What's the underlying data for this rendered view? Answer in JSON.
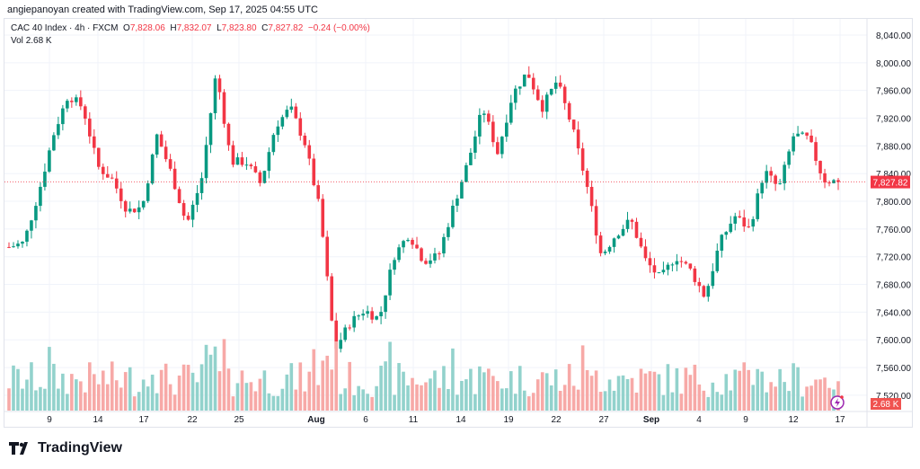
{
  "credit": "angiepanoyan created with TradingView.com, Sep 17, 2025 04:55 UTC",
  "legend": {
    "symbol": "CAC 40 Index · 4h · FXCM",
    "o_label": "O",
    "o": "7,828.06",
    "h_label": "H",
    "h": "7,832.07",
    "l_label": "L",
    "l": "7,823.80",
    "c_label": "C",
    "c": "7,827.82",
    "change": "−0.24 (−0.00%)",
    "vol_label": "Vol",
    "vol": "2.68 K"
  },
  "logo": "TradingView",
  "colors": {
    "up": "#089981",
    "down": "#f23645",
    "vol_up": "#92d2cc",
    "vol_down": "#f7a9a7"
  },
  "chart_data": {
    "type": "candlestick",
    "title": "CAC 40 Index · 4h · FXCM",
    "ylim": [
      7500,
      8060
    ],
    "y_ticks": [
      "8,040.00",
      "8,000.00",
      "7,960.00",
      "7,920.00",
      "7,880.00",
      "7,840.00",
      "7,800.00",
      "7,760.00",
      "7,720.00",
      "7,680.00",
      "7,640.00",
      "7,600.00",
      "7,560.00",
      "7,520.00"
    ],
    "y_tick_values": [
      8040,
      8000,
      7960,
      7920,
      7880,
      7840,
      7800,
      7760,
      7720,
      7680,
      7640,
      7600,
      7560,
      7520
    ],
    "x_ticks": [
      "9",
      "14",
      "17",
      "22",
      "25",
      "Aug",
      "6",
      "11",
      "14",
      "19",
      "22",
      "27",
      "Sep",
      "4",
      "9",
      "12",
      "17"
    ],
    "last_price": "7,827.82",
    "last_price_value": 7827.82,
    "last_volume": "2.68 K",
    "close_path": [
      7734,
      7740,
      7812,
      7896,
      7954,
      7935,
      7850,
      7831,
      7786,
      7792,
      7896,
      7838,
      7766,
      7831,
      7987,
      7857,
      7857,
      7825,
      7909,
      7935,
      7883,
      7786,
      7585,
      7624,
      7643,
      7630,
      7721,
      7753,
      7714,
      7721,
      7792,
      7857,
      7935,
      7870,
      7954,
      7987,
      7935,
      7974,
      7909,
      7825,
      7721,
      7753,
      7773,
      7714,
      7688,
      7721,
      7701,
      7662,
      7740,
      7779,
      7760,
      7844,
      7818,
      7896,
      7890,
      7831,
      7828
    ]
  }
}
